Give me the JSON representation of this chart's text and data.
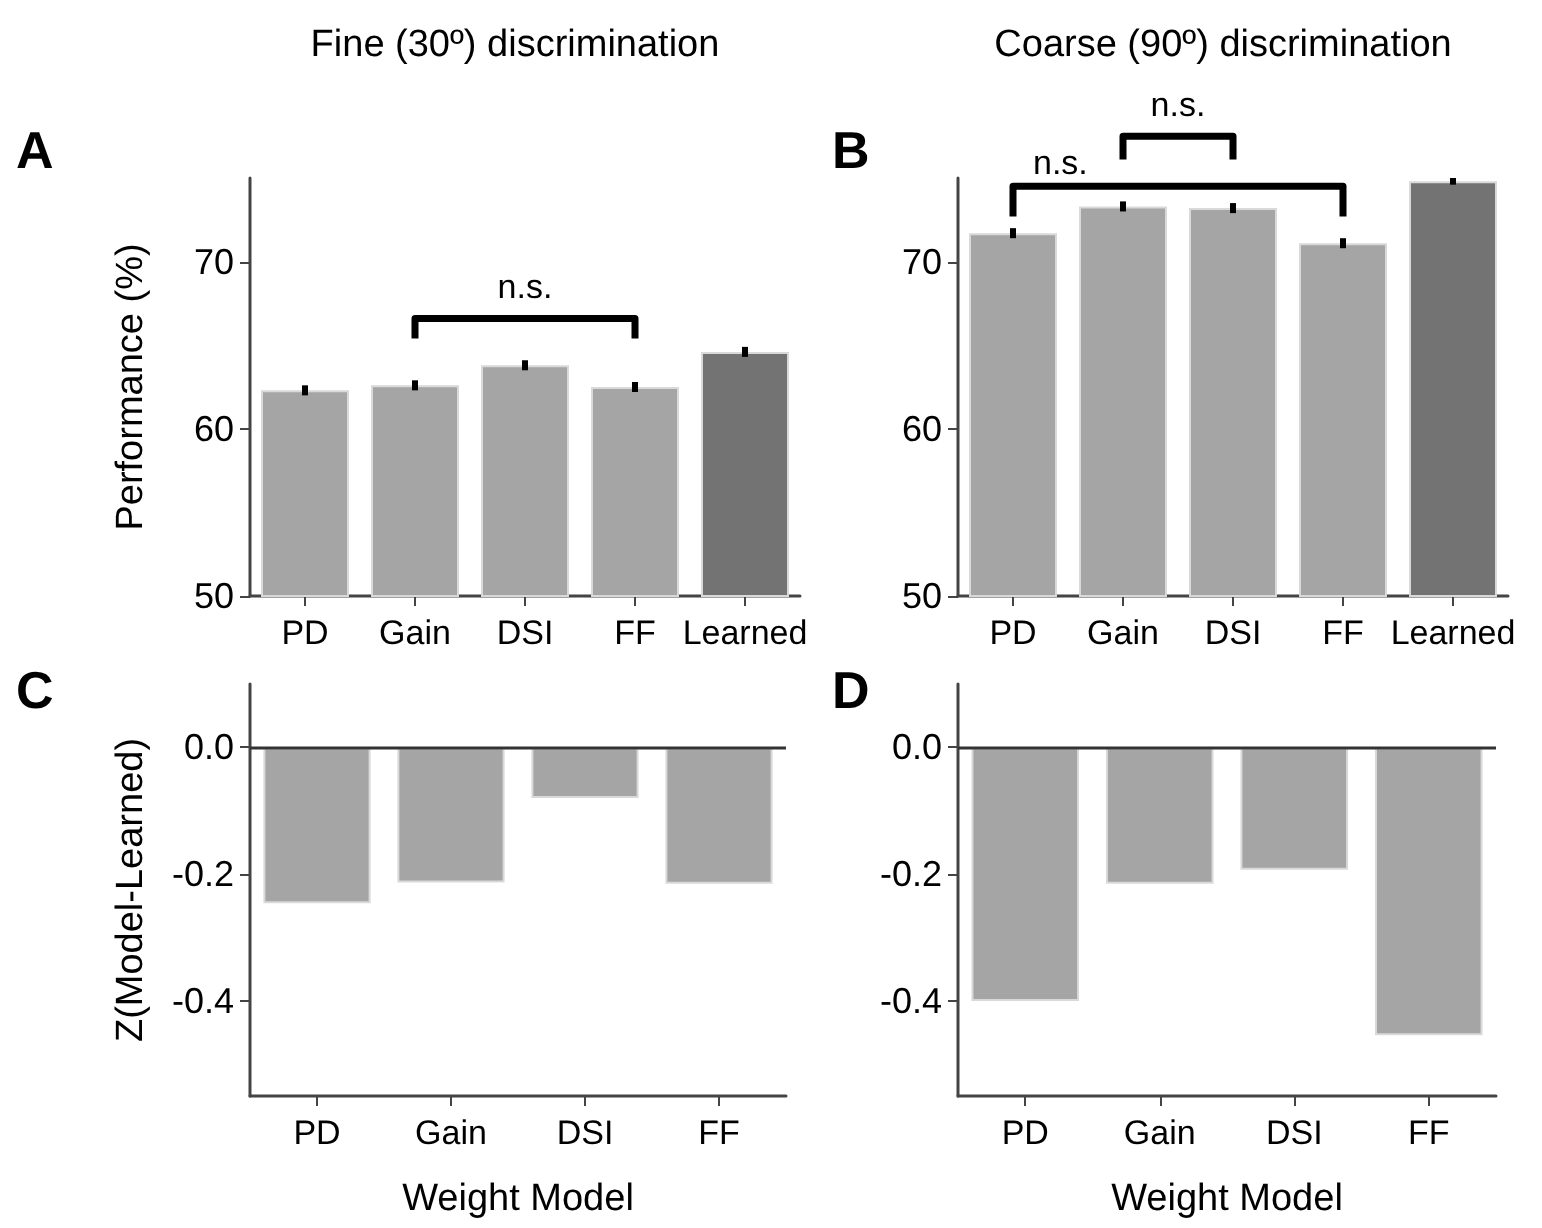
{
  "chart_data": [
    {
      "type": "bar",
      "title": "Fine (30º) discrimination",
      "ylabel": "Performance (%)",
      "categories": [
        "PD",
        "Gain",
        "DSI",
        "FF",
        "Learned"
      ],
      "values": [
        62.3,
        62.6,
        63.8,
        62.5,
        64.6
      ],
      "errors": [
        0.3,
        0.3,
        0.3,
        0.3,
        0.3
      ],
      "colors": [
        "#a5a5a5",
        "#a5a5a5",
        "#a5a5a5",
        "#a5a5a5",
        "#737373"
      ],
      "ylim": [
        50,
        75
      ],
      "yticks": [
        50,
        60,
        70
      ],
      "grid": false,
      "annotations": [
        "A",
        "n.s."
      ]
    },
    {
      "type": "bar",
      "title": "Coarse (90º) discrimination",
      "categories": [
        "PD",
        "Gain",
        "DSI",
        "FF",
        "Learned"
      ],
      "values": [
        71.7,
        73.3,
        73.2,
        71.1,
        74.8
      ],
      "errors": [
        0.3,
        0.3,
        0.3,
        0.3,
        0.2
      ],
      "colors": [
        "#a5a5a5",
        "#a5a5a5",
        "#a5a5a5",
        "#a5a5a5",
        "#737373"
      ],
      "ylim": [
        50,
        75
      ],
      "yticks": [
        50,
        60,
        70
      ],
      "grid": false,
      "annotations": [
        "B",
        "n.s.",
        "n.s."
      ]
    },
    {
      "type": "bar",
      "xlabel": "Weight Model",
      "ylabel": "Z(Model-Learned)",
      "categories": [
        "PD",
        "Gain",
        "DSI",
        "FF"
      ],
      "values": [
        -0.246,
        -0.213,
        -0.08,
        -0.215
      ],
      "color": "#a5a5a5",
      "ylim": [
        -0.55,
        0.1
      ],
      "yticks": [
        {
          "value": -0.4,
          "label": "-0.4"
        },
        {
          "value": -0.2,
          "label": "-0.2"
        },
        {
          "value": 0,
          "label": "0.0"
        }
      ],
      "grid": false,
      "ref_lines": [
        {
          "axis": "y",
          "value": 0
        }
      ],
      "annotations": [
        "C"
      ]
    },
    {
      "type": "bar",
      "xlabel": "Weight Model",
      "categories": [
        "PD",
        "Gain",
        "DSI",
        "FF"
      ],
      "values": [
        -0.4,
        -0.215,
        -0.193,
        -0.454
      ],
      "color": "#a5a5a5",
      "ylim": [
        -0.55,
        0.1
      ],
      "yticks": [
        {
          "value": -0.4,
          "label": "-0.4"
        },
        {
          "value": -0.2,
          "label": "-0.2"
        },
        {
          "value": 0,
          "label": "0.0"
        }
      ],
      "grid": false,
      "ref_lines": [
        {
          "axis": "y",
          "value": 0
        }
      ],
      "annotations": [
        "D"
      ]
    }
  ]
}
